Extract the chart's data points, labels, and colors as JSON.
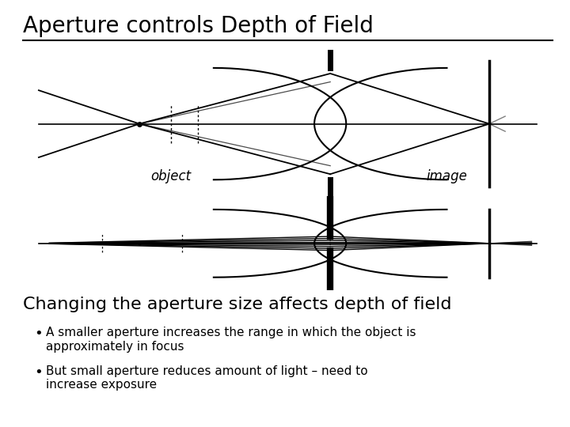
{
  "title": "Aperture controls Depth of Field",
  "subtitle": "Changing the aperture size affects depth of field",
  "bullet1": "A smaller aperture increases the range in which the object is approximately in focus",
  "bullet2": "But small aperture reduces amount of light – need to\nincrease exposure",
  "label_object": "object",
  "label_image": "image",
  "bg_color": "#ffffff",
  "text_color": "#000000",
  "title_fontsize": 20,
  "subtitle_fontsize": 16,
  "bullet_fontsize": 11
}
